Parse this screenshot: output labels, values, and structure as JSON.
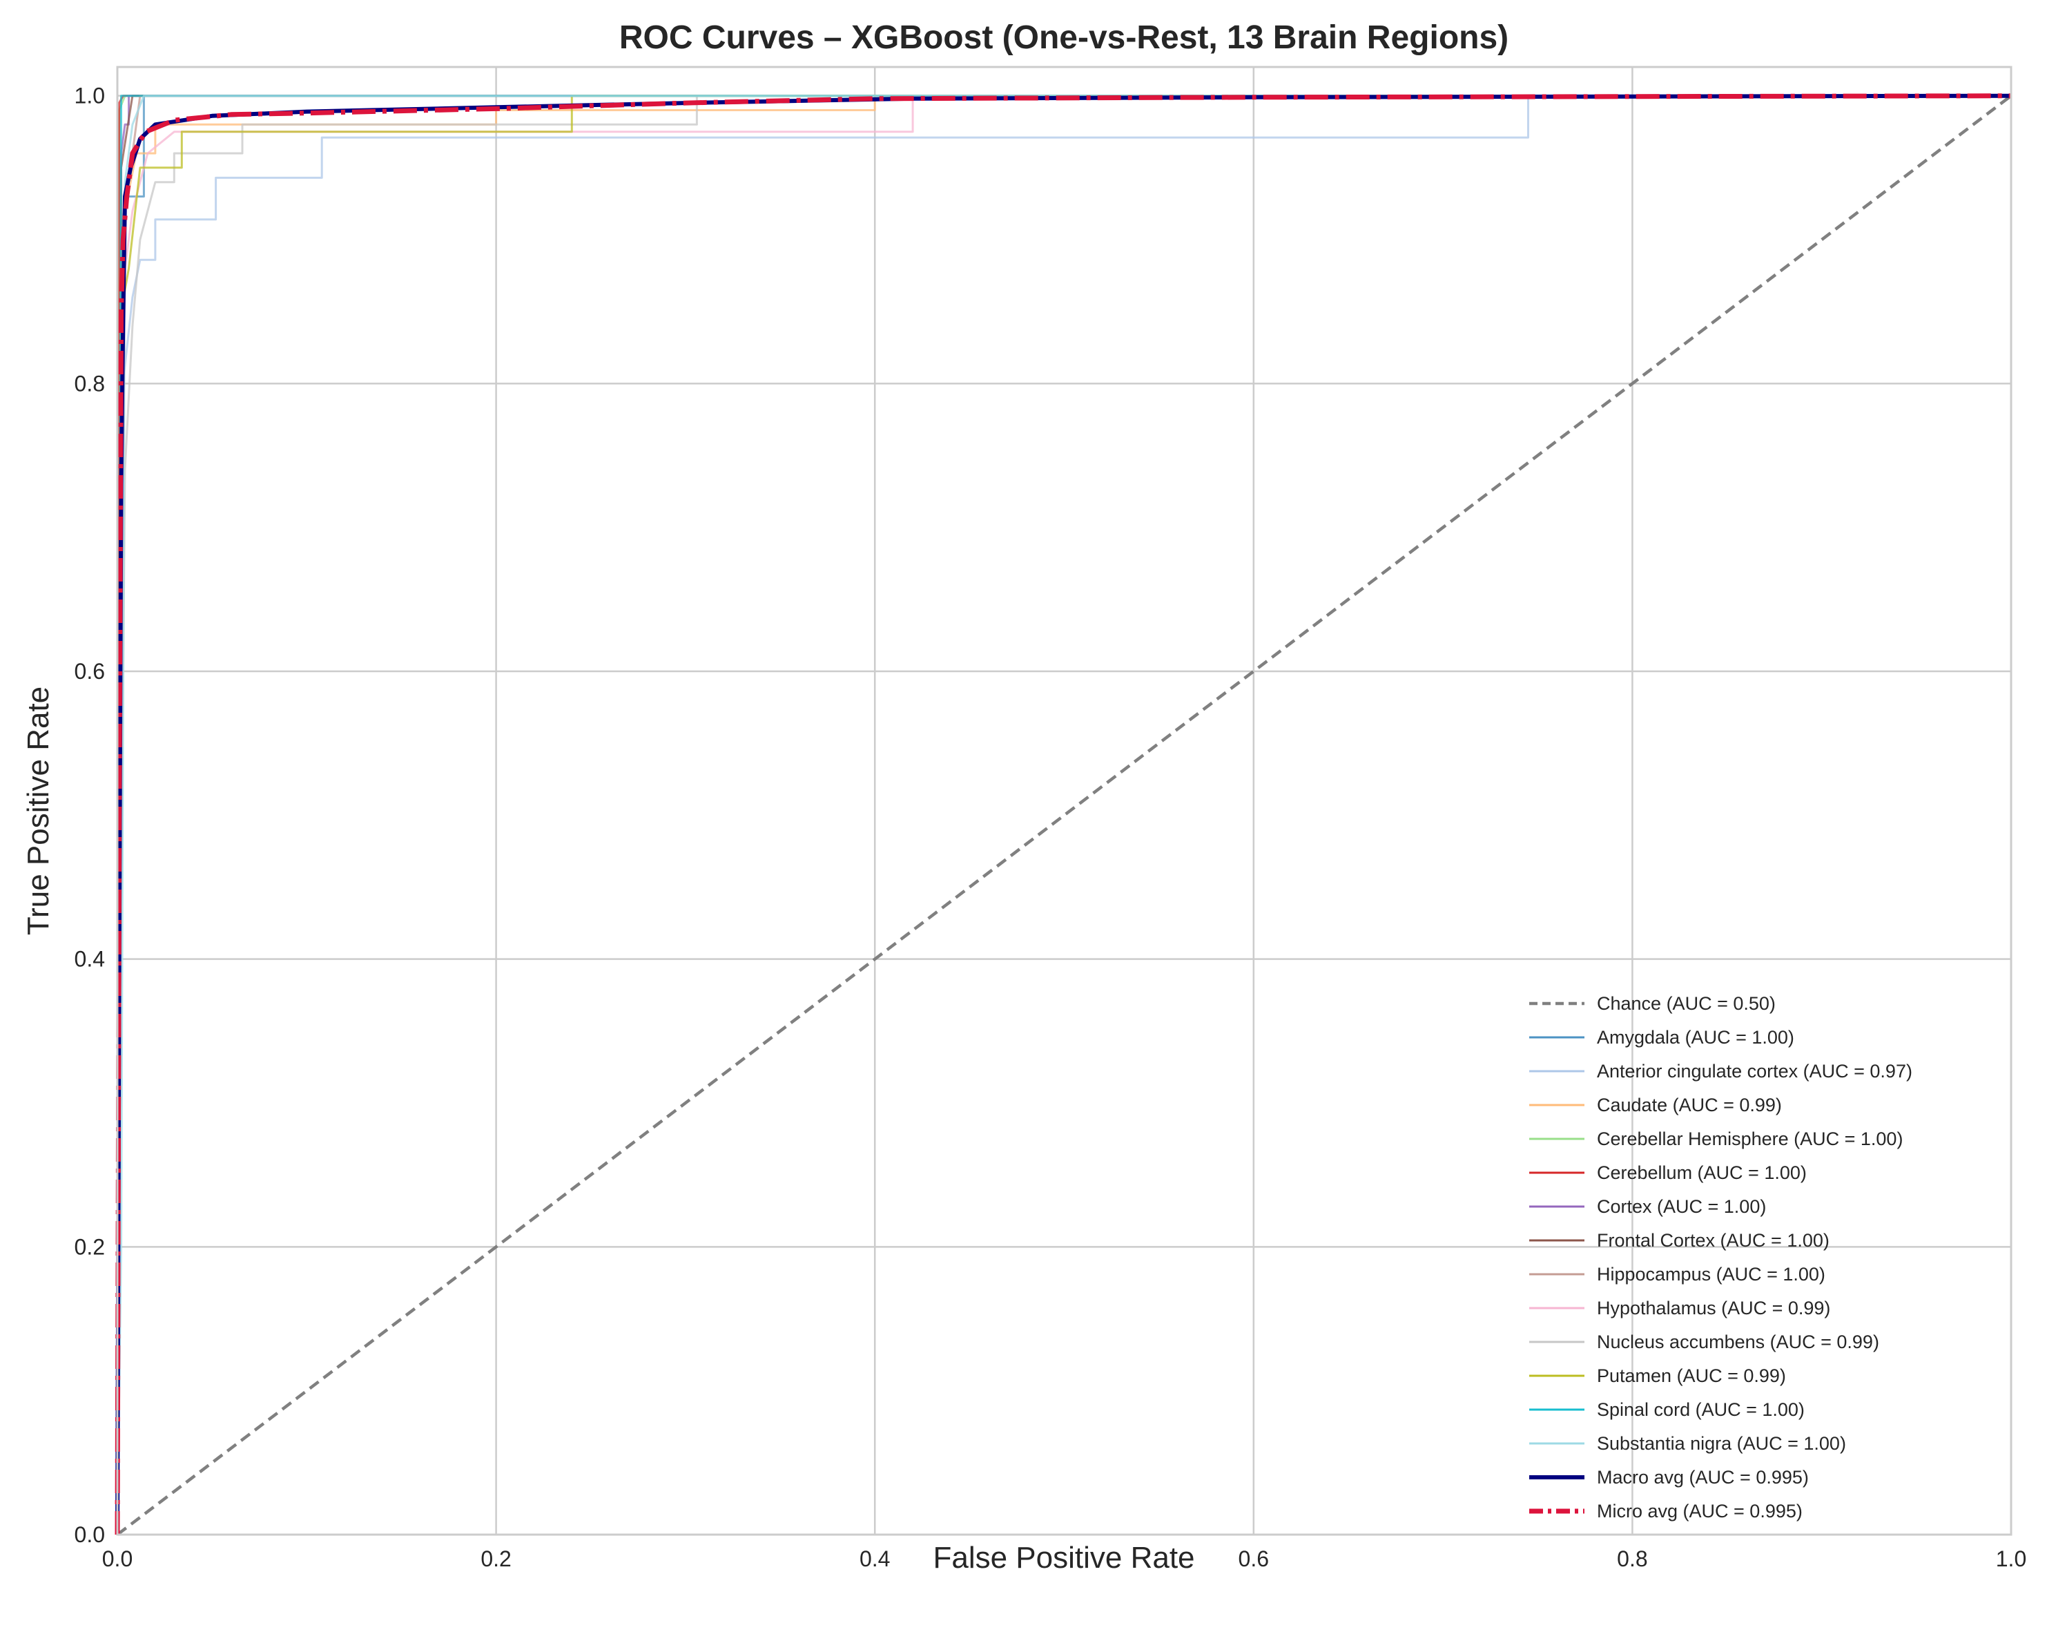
{
  "chart_data": {
    "type": "line",
    "title": "ROC Curves – XGBoost (One-vs-Rest, 13 Brain Regions)",
    "xlabel": "False Positive Rate",
    "ylabel": "True Positive Rate",
    "xlim": [
      0.0,
      1.0
    ],
    "ylim": [
      0.0,
      1.02
    ],
    "x_ticks": [
      "0.0",
      "0.2",
      "0.4",
      "0.6",
      "0.8",
      "1.0"
    ],
    "y_ticks": [
      "0.0",
      "0.2",
      "0.4",
      "0.6",
      "0.8",
      "1.0"
    ],
    "grid": true,
    "legend_position": "lower-right",
    "series": [
      {
        "name": "Chance (AUC = 0.50)",
        "color": "#808080",
        "style": "dashed",
        "width": 4.5,
        "points": [
          [
            0,
            0
          ],
          [
            1,
            1
          ]
        ]
      },
      {
        "name": "Amygdala (AUC = 1.00)",
        "color": "#4c93c3",
        "style": "solid",
        "width": 3,
        "points": [
          [
            0,
            0
          ],
          [
            0.002,
            0.9
          ],
          [
            0.004,
            0.93
          ],
          [
            0.014,
            0.93
          ],
          [
            0.014,
            1.0
          ],
          [
            1,
            1
          ]
        ]
      },
      {
        "name": "Anterior cingulate cortex (AUC = 0.97)",
        "color": "#aec7e8",
        "style": "solid",
        "width": 3,
        "points": [
          [
            0,
            0
          ],
          [
            0.003,
            0.8
          ],
          [
            0.008,
            0.86
          ],
          [
            0.012,
            0.886
          ],
          [
            0.02,
            0.886
          ],
          [
            0.02,
            0.914
          ],
          [
            0.052,
            0.914
          ],
          [
            0.052,
            0.943
          ],
          [
            0.108,
            0.943
          ],
          [
            0.108,
            0.971
          ],
          [
            0.745,
            0.971
          ],
          [
            0.745,
            1.0
          ],
          [
            1,
            1
          ]
        ]
      },
      {
        "name": "Caudate (AUC = 0.99)",
        "color": "#ffbb78",
        "style": "solid",
        "width": 3,
        "points": [
          [
            0,
            0
          ],
          [
            0.004,
            0.92
          ],
          [
            0.01,
            0.96
          ],
          [
            0.02,
            0.96
          ],
          [
            0.02,
            0.98
          ],
          [
            0.2,
            0.98
          ],
          [
            0.2,
            0.99
          ],
          [
            0.4,
            0.99
          ],
          [
            0.4,
            1.0
          ],
          [
            1,
            1
          ]
        ]
      },
      {
        "name": "Cerebellar Hemisphere (AUC = 1.00)",
        "color": "#98df8a",
        "style": "solid",
        "width": 3,
        "points": [
          [
            0,
            0
          ],
          [
            0.001,
            0.99
          ],
          [
            0.004,
            1.0
          ],
          [
            1,
            1
          ]
        ]
      },
      {
        "name": "Cerebellum (AUC = 1.00)",
        "color": "#d62728",
        "style": "solid",
        "width": 3,
        "points": [
          [
            0,
            0
          ],
          [
            0.001,
            0.995
          ],
          [
            0.003,
            1.0
          ],
          [
            1,
            1
          ]
        ]
      },
      {
        "name": "Cortex (AUC = 1.00)",
        "color": "#9467bd",
        "style": "solid",
        "width": 3,
        "points": [
          [
            0,
            0
          ],
          [
            0.002,
            0.96
          ],
          [
            0.004,
            0.98
          ],
          [
            0.006,
            0.98
          ],
          [
            0.006,
            1.0
          ],
          [
            1,
            1
          ]
        ]
      },
      {
        "name": "Frontal Cortex (AUC = 1.00)",
        "color": "#8c564b",
        "style": "solid",
        "width": 3,
        "points": [
          [
            0,
            0
          ],
          [
            0.002,
            0.95
          ],
          [
            0.008,
            1.0
          ],
          [
            1,
            1
          ]
        ]
      },
      {
        "name": "Hippocampus (AUC = 1.00)",
        "color": "#c49c94",
        "style": "solid",
        "width": 3,
        "points": [
          [
            0,
            0
          ],
          [
            0.002,
            0.9
          ],
          [
            0.008,
            0.96
          ],
          [
            0.012,
            1.0
          ],
          [
            1,
            1
          ]
        ]
      },
      {
        "name": "Hypothalamus (AUC = 0.99)",
        "color": "#f7b6d2",
        "style": "solid",
        "width": 3,
        "points": [
          [
            0,
            0
          ],
          [
            0.004,
            0.88
          ],
          [
            0.008,
            0.92
          ],
          [
            0.016,
            0.96
          ],
          [
            0.03,
            0.975
          ],
          [
            0.42,
            0.975
          ],
          [
            0.42,
            1.0
          ],
          [
            1,
            1
          ]
        ]
      },
      {
        "name": "Nucleus accumbens (AUC = 0.99)",
        "color": "#c7c7c7",
        "style": "solid",
        "width": 3,
        "points": [
          [
            0,
            0
          ],
          [
            0.002,
            0.43
          ],
          [
            0.004,
            0.74
          ],
          [
            0.008,
            0.84
          ],
          [
            0.012,
            0.9
          ],
          [
            0.02,
            0.94
          ],
          [
            0.03,
            0.94
          ],
          [
            0.03,
            0.96
          ],
          [
            0.066,
            0.96
          ],
          [
            0.066,
            0.98
          ],
          [
            0.306,
            0.98
          ],
          [
            0.306,
            1.0
          ],
          [
            1,
            1
          ]
        ]
      },
      {
        "name": "Putamen (AUC = 0.99)",
        "color": "#bcbd22",
        "style": "solid",
        "width": 3,
        "points": [
          [
            0,
            0
          ],
          [
            0.002,
            0.85
          ],
          [
            0.006,
            0.88
          ],
          [
            0.012,
            0.95
          ],
          [
            0.034,
            0.95
          ],
          [
            0.034,
            0.975
          ],
          [
            0.24,
            0.975
          ],
          [
            0.24,
            1.0
          ],
          [
            1,
            1
          ]
        ]
      },
      {
        "name": "Spinal cord (AUC = 1.00)",
        "color": "#17becf",
        "style": "solid",
        "width": 3,
        "points": [
          [
            0,
            0
          ],
          [
            0.002,
            1.0
          ],
          [
            1,
            1
          ]
        ]
      },
      {
        "name": "Substantia nigra (AUC = 1.00)",
        "color": "#9edae5",
        "style": "solid",
        "width": 3,
        "points": [
          [
            0,
            0
          ],
          [
            0.002,
            0.2
          ],
          [
            0.004,
            0.94
          ],
          [
            0.008,
            0.98
          ],
          [
            0.014,
            1.0
          ],
          [
            1,
            1
          ]
        ]
      },
      {
        "name": "Macro avg (AUC = 0.995)",
        "color": "#000080",
        "style": "solid",
        "width": 6,
        "points": [
          [
            0,
            0
          ],
          [
            0.001,
            0.4
          ],
          [
            0.002,
            0.73
          ],
          [
            0.003,
            0.84
          ],
          [
            0.004,
            0.93
          ],
          [
            0.007,
            0.95
          ],
          [
            0.012,
            0.97
          ],
          [
            0.02,
            0.98
          ],
          [
            0.05,
            0.986
          ],
          [
            0.1,
            0.989
          ],
          [
            0.2,
            0.992
          ],
          [
            0.3,
            0.995
          ],
          [
            0.42,
            0.998
          ],
          [
            0.6,
            0.999
          ],
          [
            0.8,
            0.9995
          ],
          [
            1,
            1
          ]
        ]
      },
      {
        "name": "Micro avg (AUC = 0.995)",
        "color": "#dc143c",
        "style": "dashdot",
        "width": 7,
        "points": [
          [
            0,
            0
          ],
          [
            0.001,
            0.5
          ],
          [
            0.002,
            0.85
          ],
          [
            0.003,
            0.9
          ],
          [
            0.005,
            0.93
          ],
          [
            0.008,
            0.96
          ],
          [
            0.015,
            0.975
          ],
          [
            0.03,
            0.983
          ],
          [
            0.06,
            0.987
          ],
          [
            0.1,
            0.988
          ],
          [
            0.2,
            0.991
          ],
          [
            0.3,
            0.995
          ],
          [
            0.4,
            0.998
          ],
          [
            0.6,
            0.999
          ],
          [
            1,
            1
          ]
        ]
      }
    ]
  }
}
